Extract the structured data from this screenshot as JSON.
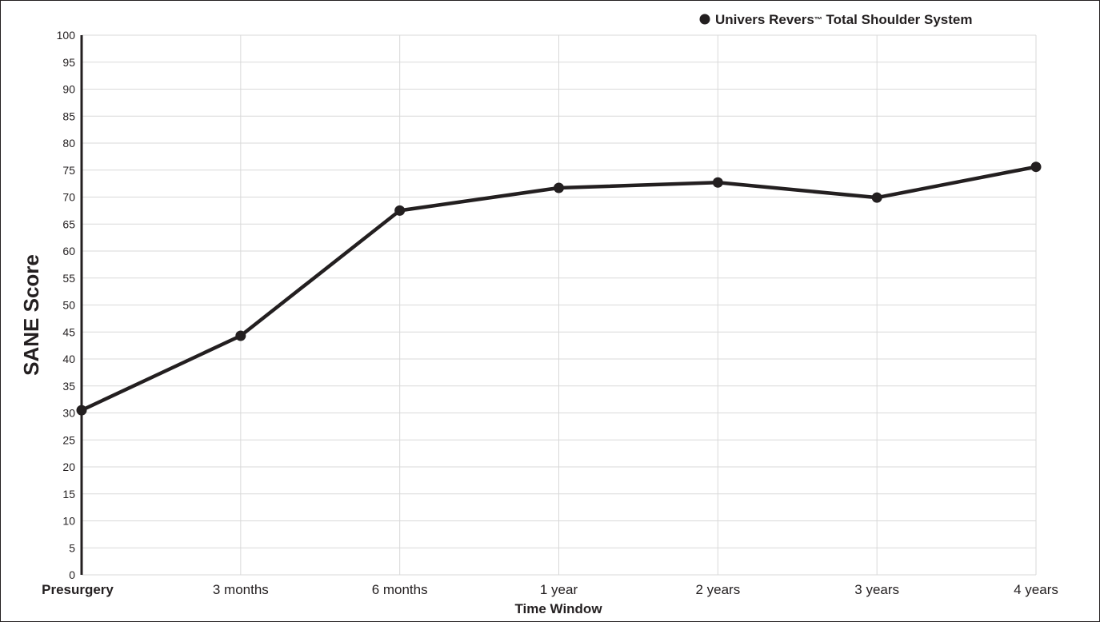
{
  "chart_data": {
    "type": "line",
    "xlabel": "Time Window",
    "ylabel": "SANE Score",
    "ylim": [
      0,
      100
    ],
    "yticks": [
      0,
      5,
      10,
      15,
      20,
      25,
      30,
      35,
      40,
      45,
      50,
      55,
      60,
      65,
      70,
      75,
      80,
      85,
      90,
      95,
      100
    ],
    "categories": [
      "Presurgery",
      "3 months",
      "6 months",
      "1 year",
      "2 years",
      "3 years",
      "4 years"
    ],
    "grid": true,
    "legend_position": "top-right",
    "series": [
      {
        "name": "Univers Revers",
        "name_suffix": "™",
        "name_rest": " Total Shoulder System",
        "color": "#231f20",
        "values": [
          30.5,
          44.3,
          67.5,
          71.7,
          72.7,
          69.9,
          75.6
        ]
      }
    ]
  }
}
